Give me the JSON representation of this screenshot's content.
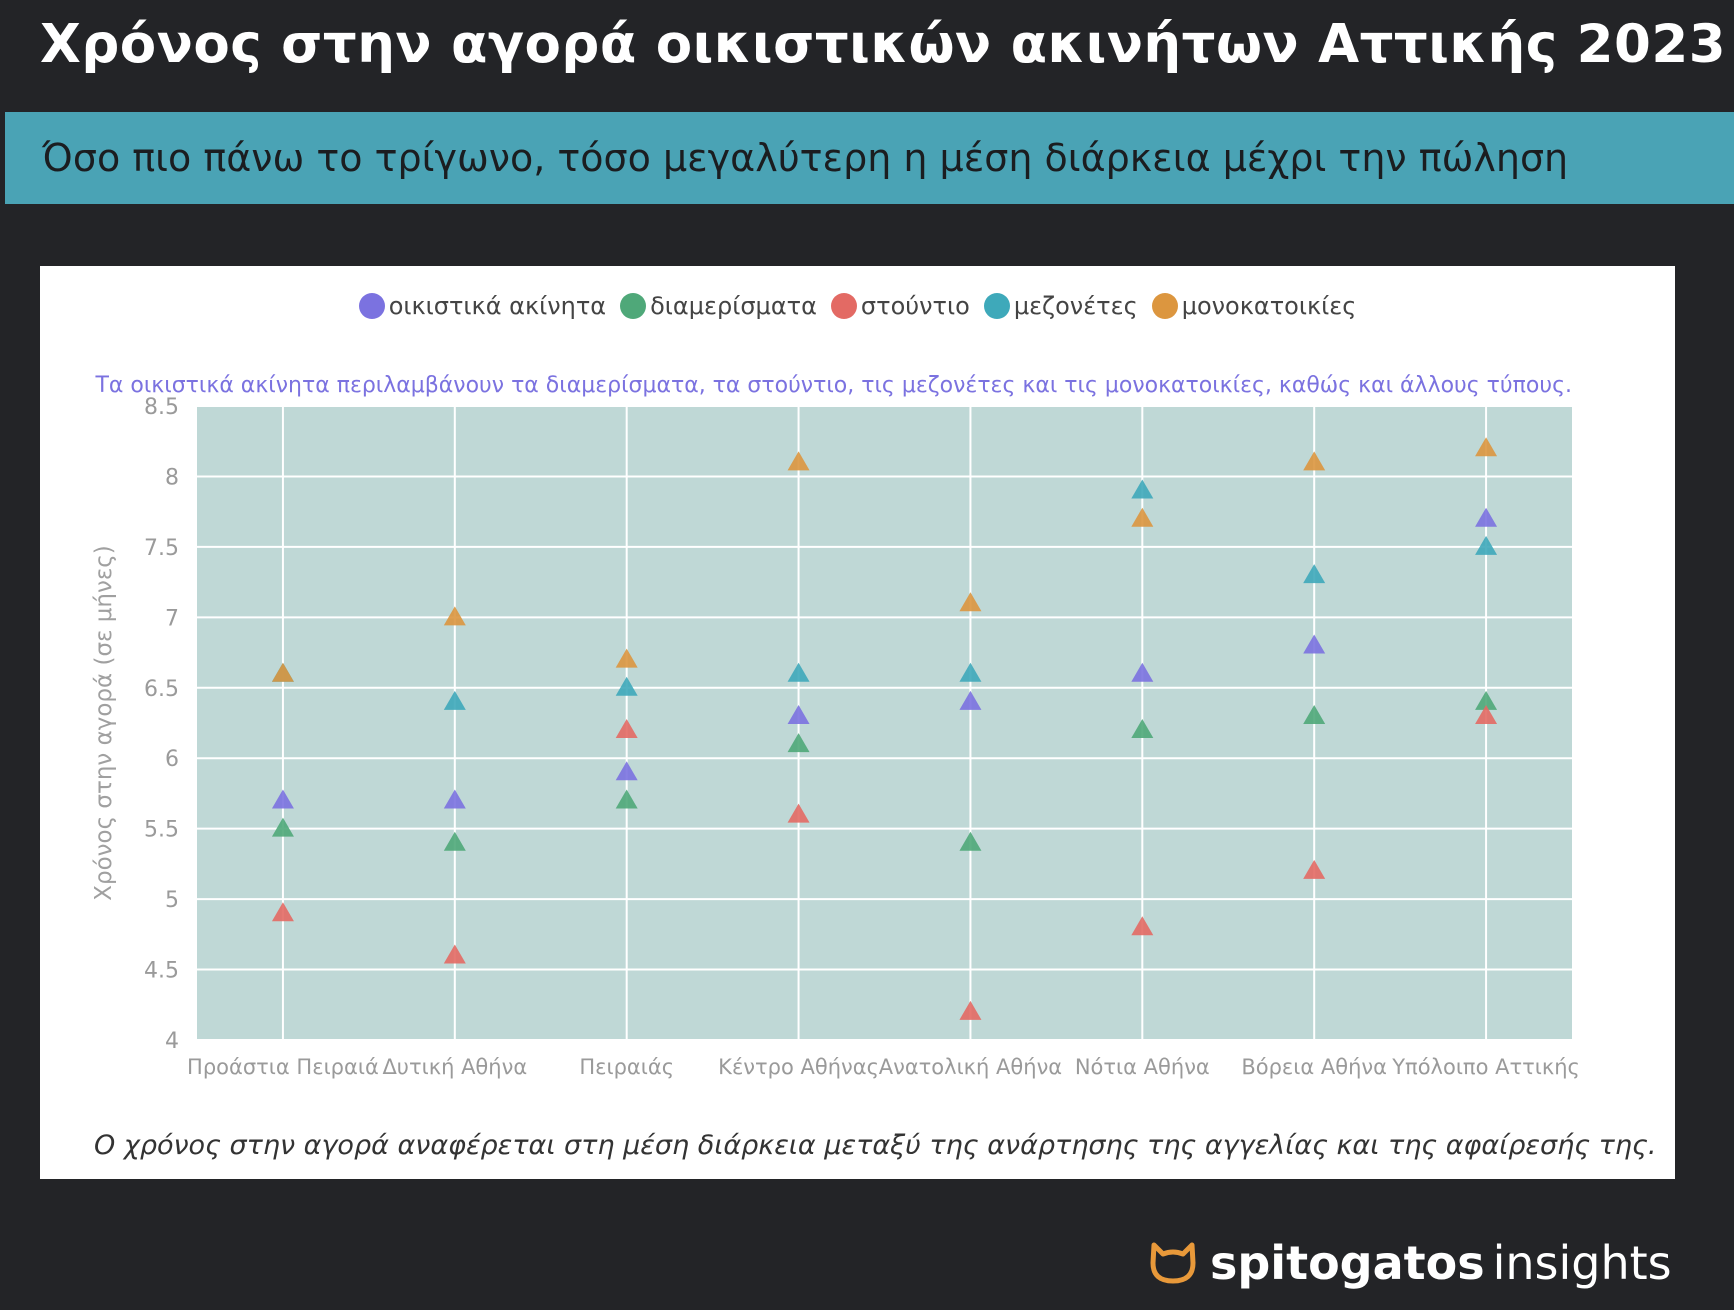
{
  "header": {
    "title": "Χρόνος στην αγορά οικιστικών ακινήτων Αττικής 2023",
    "subtitle": "Όσο πιο πάνω το τρίγωνο, τόσο μεγαλύτερη η μέση διάρκεια μέχρι την πώληση"
  },
  "footnote": "Ο χρόνος στην αγορά αναφέρεται στη μέση διάρκεια μεταξύ της ανάρτησης της αγγελίας και της αφαίρεσής της.",
  "brand": {
    "name": "spitogatos",
    "suffix": "insights",
    "icon": "cat-head-icon",
    "color": "#e8993a"
  },
  "chart_data": {
    "type": "scatter",
    "annotation": "Τα οικιστικά ακίνητα περιλαμβάνουν τα διαμερίσματα, τα στούντιο, τις μεζονέτες και τις μονοκατοικίες, καθώς και άλλους τύπους.",
    "ylabel": "Χρόνος στην αγορά (σε μήνες)",
    "xlabel": "",
    "ylim": [
      4,
      8.5
    ],
    "yticks": [
      "4",
      "4.5",
      "5",
      "5.5",
      "6",
      "6.5",
      "7",
      "7.5",
      "8",
      "8.5"
    ],
    "categories": [
      "Προάστια Πειραιά",
      "Δυτική Αθήνα",
      "Πειραιάς",
      "Κέντρο Αθήνας",
      "Ανατολική Αθήνα",
      "Νότια Αθήνα",
      "Βόρεια Αθήνα",
      "Υπόλοιπο Αττικής"
    ],
    "legend_position": "top-center",
    "marker": "triangle",
    "grid": true,
    "series": [
      {
        "name": "οικιστικά ακίνητα",
        "color": "#7b72e0",
        "values": [
          5.7,
          5.7,
          5.9,
          6.3,
          6.4,
          6.6,
          6.8,
          7.7
        ]
      },
      {
        "name": "διαμερίσματα",
        "color": "#4fa879",
        "values": [
          5.5,
          5.4,
          5.7,
          6.1,
          5.4,
          6.2,
          6.3,
          6.4
        ]
      },
      {
        "name": "στούντιο",
        "color": "#e36a64",
        "values": [
          4.9,
          4.6,
          6.2,
          5.6,
          4.2,
          4.8,
          5.2,
          6.3
        ]
      },
      {
        "name": "μεζονέτες",
        "color": "#3ea9ba",
        "values": [
          6.6,
          6.4,
          6.5,
          6.6,
          6.6,
          7.9,
          7.3,
          7.5
        ]
      },
      {
        "name": "μονοκατοικίες",
        "color": "#dc963f",
        "values": [
          6.6,
          7.0,
          6.7,
          8.1,
          7.1,
          7.7,
          8.1,
          8.2
        ]
      }
    ]
  }
}
